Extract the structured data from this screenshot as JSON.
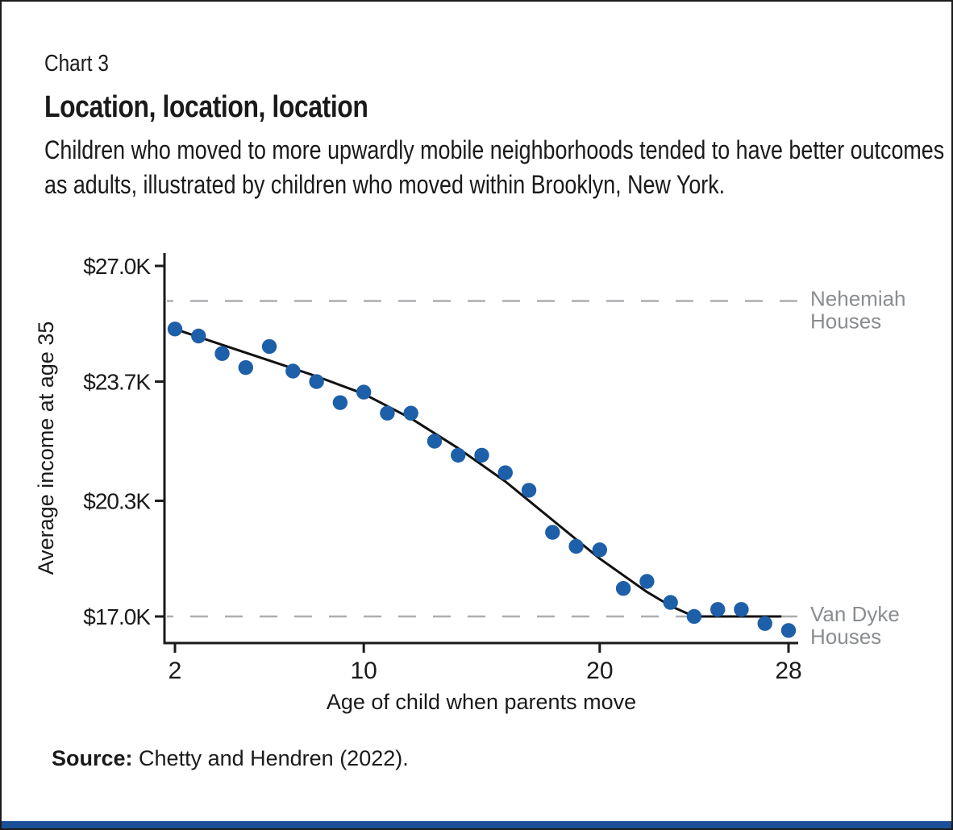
{
  "header": {
    "kicker": "Chart 3",
    "title": "Location, location, location",
    "subtitle": "Children who moved to more upwardly mobile neighborhoods tended to have better outcomes as adults, illustrated by children who moved within Brooklyn, New York."
  },
  "source": {
    "label": "Source:",
    "text": " Chetty and Hendren (2022)."
  },
  "chart_data": {
    "type": "scatter",
    "title": "Location, location, location",
    "xlabel": "Age of child when parents move",
    "ylabel": "Average income at age 35",
    "xlim": [
      2,
      28
    ],
    "ylim": [
      17.0,
      27.0
    ],
    "grid": false,
    "legend": "none",
    "x_ticks": [
      {
        "label": "2",
        "value": 2
      },
      {
        "label": "10",
        "value": 10
      },
      {
        "label": "20",
        "value": 20
      },
      {
        "label": "28",
        "value": 28
      }
    ],
    "y_ticks": [
      {
        "label": "$27.0K",
        "value": 27.0
      },
      {
        "label": "$23.7K",
        "value": 23.7
      },
      {
        "label": "$20.3K",
        "value": 20.3
      },
      {
        "label": "$17.0K",
        "value": 17.0
      }
    ],
    "x": [
      2,
      3,
      4,
      5,
      6,
      7,
      8,
      9,
      10,
      11,
      12,
      13,
      14,
      15,
      16,
      17,
      18,
      19,
      20,
      21,
      22,
      23,
      24,
      25,
      26,
      27,
      28
    ],
    "y": [
      25.2,
      25.0,
      24.5,
      24.1,
      24.7,
      24.0,
      23.7,
      23.1,
      23.4,
      22.8,
      22.8,
      22.0,
      21.6,
      21.6,
      21.1,
      20.6,
      19.4,
      19.0,
      18.9,
      17.8,
      18.0,
      17.4,
      17.0,
      17.2,
      17.2,
      16.8,
      16.6
    ],
    "trend_line": [
      [
        2,
        25.2
      ],
      [
        4,
        24.75
      ],
      [
        6,
        24.3
      ],
      [
        8,
        23.85
      ],
      [
        10,
        23.35
      ],
      [
        12,
        22.65
      ],
      [
        14,
        21.8
      ],
      [
        16,
        20.85
      ],
      [
        18,
        19.75
      ],
      [
        20,
        18.65
      ],
      [
        22,
        17.7
      ],
      [
        23,
        17.3
      ],
      [
        24,
        17.0
      ],
      [
        27.7,
        17.0
      ]
    ],
    "reference_lines": [
      {
        "name": "nehemiah-houses",
        "label_lines": [
          "Nehemiah",
          "Houses"
        ],
        "value": 26.0
      },
      {
        "name": "van-dyke-houses",
        "label_lines": [
          "Van Dyke",
          "Houses"
        ],
        "value": 17.0
      }
    ],
    "colors": {
      "point": "#1D5FA8",
      "trend": "#111111",
      "reference_line": "#ABAEB0",
      "reference_label": "#8A8D90",
      "axis": "#1a1a1a",
      "accent_bar": "#1B4F97"
    }
  }
}
